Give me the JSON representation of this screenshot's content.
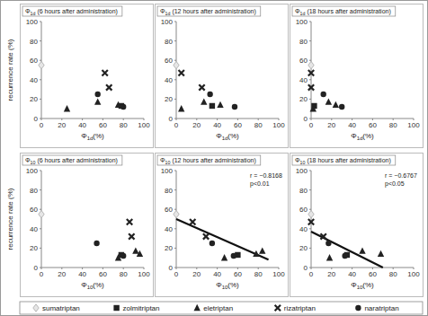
{
  "chart_data": [
    {
      "type": "scatter",
      "title": "Φ1d (6 hours after administration)",
      "x_label": "Φ1d(%)",
      "y_label": "recurrence rate (%)",
      "legend": "bottom",
      "xlim": [
        0,
        100
      ],
      "xticks": [
        0,
        20,
        40,
        60,
        80,
        100
      ],
      "ylim": [
        0,
        100
      ],
      "yticks": [
        0,
        20,
        40,
        60,
        80,
        100
      ],
      "series": [
        {
          "name": "sumatriptan",
          "marker": "diamond",
          "color": "#b8b8b8",
          "x": [
            0
          ],
          "values": [
            55
          ]
        },
        {
          "name": "zolmitriptan",
          "marker": "square",
          "color": "#222222",
          "x": [
            78
          ],
          "values": [
            13
          ]
        },
        {
          "name": "eletriptan",
          "marker": "triangle",
          "color": "#222222",
          "x": [
            25,
            55,
            75
          ],
          "values": [
            10,
            17,
            14
          ]
        },
        {
          "name": "rizatriptan",
          "marker": "x",
          "color": "#222222",
          "x": [
            62,
            66
          ],
          "values": [
            47,
            32
          ]
        },
        {
          "name": "naratriptan",
          "marker": "circle",
          "color": "#222222",
          "x": [
            55,
            80
          ],
          "values": [
            25,
            12
          ]
        }
      ]
    },
    {
      "type": "scatter",
      "title": "Φ1d (12 hours after administration)",
      "x_label": "Φ1d(%)",
      "xlim": [
        0,
        100
      ],
      "xticks": [
        0,
        20,
        40,
        60,
        80,
        100
      ],
      "ylim": [
        0,
        100
      ],
      "yticks": [
        0,
        20,
        40,
        60,
        80,
        100
      ],
      "series": [
        {
          "marker": "diamond",
          "color": "#b8b8b8",
          "x": [
            0
          ],
          "values": [
            55
          ]
        },
        {
          "marker": "square",
          "color": "#222222",
          "x": [
            35
          ],
          "values": [
            13
          ]
        },
        {
          "marker": "triangle",
          "color": "#222222",
          "x": [
            5,
            27,
            43
          ],
          "values": [
            10,
            17,
            14
          ]
        },
        {
          "marker": "x",
          "color": "#222222",
          "x": [
            5,
            25
          ],
          "values": [
            47,
            32
          ]
        },
        {
          "marker": "circle",
          "color": "#222222",
          "x": [
            33,
            57
          ],
          "values": [
            25,
            12
          ]
        }
      ]
    },
    {
      "type": "scatter",
      "title": "Φ1d (18 hours after administration)",
      "x_label": "Φ1d(%)",
      "xlim": [
        0,
        100
      ],
      "xticks": [
        0,
        20,
        40,
        60,
        80,
        100
      ],
      "ylim": [
        0,
        100
      ],
      "yticks": [
        0,
        20,
        40,
        60,
        80,
        100
      ],
      "series": [
        {
          "marker": "diamond",
          "color": "#b8b8b8",
          "x": [
            0
          ],
          "values": [
            55
          ]
        },
        {
          "marker": "square",
          "color": "#222222",
          "x": [
            3
          ],
          "values": [
            13
          ]
        },
        {
          "marker": "triangle",
          "color": "#222222",
          "x": [
            2,
            17,
            24
          ],
          "values": [
            10,
            17,
            14
          ]
        },
        {
          "marker": "x",
          "color": "#222222",
          "x": [
            0,
            0
          ],
          "values": [
            47,
            32
          ]
        },
        {
          "marker": "circle",
          "color": "#222222",
          "x": [
            12,
            30
          ],
          "values": [
            25,
            12
          ]
        }
      ]
    },
    {
      "type": "scatter",
      "title": "Φ10 (6 hours after administration)",
      "x_label": "Φ10(%)",
      "y_label": "recurrence rate (%)",
      "xlim": [
        0,
        100
      ],
      "xticks": [
        0,
        20,
        40,
        60,
        80,
        100
      ],
      "ylim": [
        0,
        100
      ],
      "yticks": [
        0,
        20,
        40,
        60,
        80,
        100
      ],
      "series": [
        {
          "marker": "diamond",
          "color": "#b8b8b8",
          "x": [
            0
          ],
          "values": [
            55
          ]
        },
        {
          "marker": "square",
          "color": "#222222",
          "x": [
            78
          ],
          "values": [
            13
          ]
        },
        {
          "marker": "triangle",
          "color": "#222222",
          "x": [
            75,
            92,
            96
          ],
          "values": [
            10,
            17,
            14
          ]
        },
        {
          "marker": "x",
          "color": "#222222",
          "x": [
            86,
            88
          ],
          "values": [
            47,
            32
          ]
        },
        {
          "marker": "circle",
          "color": "#222222",
          "x": [
            54,
            80
          ],
          "values": [
            25,
            12
          ]
        }
      ]
    },
    {
      "type": "scatter",
      "title": "Φ10 (12 hours after administration)",
      "x_label": "Φ10(%)",
      "xlim": [
        0,
        100
      ],
      "xticks": [
        0,
        20,
        40,
        60,
        80,
        100
      ],
      "ylim": [
        0,
        100
      ],
      "yticks": [
        0,
        20,
        40,
        60,
        80,
        100
      ],
      "annotations": [
        "r = −0.8168",
        "p<0.01"
      ],
      "trend": {
        "x": [
          0,
          90
        ],
        "y": [
          50,
          8
        ]
      },
      "series": [
        {
          "marker": "diamond",
          "color": "#b8b8b8",
          "x": [
            0
          ],
          "values": [
            55
          ]
        },
        {
          "marker": "square",
          "color": "#222222",
          "x": [
            60
          ],
          "values": [
            13
          ]
        },
        {
          "marker": "triangle",
          "color": "#222222",
          "x": [
            47,
            84,
            78
          ],
          "values": [
            10,
            17,
            14
          ]
        },
        {
          "marker": "x",
          "color": "#222222",
          "x": [
            16,
            29
          ],
          "values": [
            47,
            32
          ]
        },
        {
          "marker": "circle",
          "color": "#222222",
          "x": [
            35,
            56
          ],
          "values": [
            25,
            12
          ]
        }
      ]
    },
    {
      "type": "scatter",
      "title": "Φ10 (18 hours after administration)",
      "x_label": "Φ10(%)",
      "xlim": [
        0,
        100
      ],
      "xticks": [
        0,
        20,
        40,
        60,
        80,
        100
      ],
      "ylim": [
        0,
        100
      ],
      "yticks": [
        0,
        20,
        40,
        60,
        80,
        100
      ],
      "annotations": [
        "r = −0.6767",
        "p<0.05"
      ],
      "trend": {
        "x": [
          0,
          70
        ],
        "y": [
          37,
          0
        ]
      },
      "series": [
        {
          "marker": "diamond",
          "color": "#b8b8b8",
          "x": [
            0
          ],
          "values": [
            55
          ]
        },
        {
          "marker": "square",
          "color": "#222222",
          "x": [
            35
          ],
          "values": [
            13
          ]
        },
        {
          "marker": "triangle",
          "color": "#222222",
          "x": [
            18,
            50,
            68
          ],
          "values": [
            10,
            17,
            14
          ]
        },
        {
          "marker": "x",
          "color": "#222222",
          "x": [
            0,
            12
          ],
          "values": [
            47,
            32
          ]
        },
        {
          "marker": "circle",
          "color": "#222222",
          "x": [
            17,
            33
          ],
          "values": [
            25,
            12
          ]
        }
      ]
    }
  ]
}
